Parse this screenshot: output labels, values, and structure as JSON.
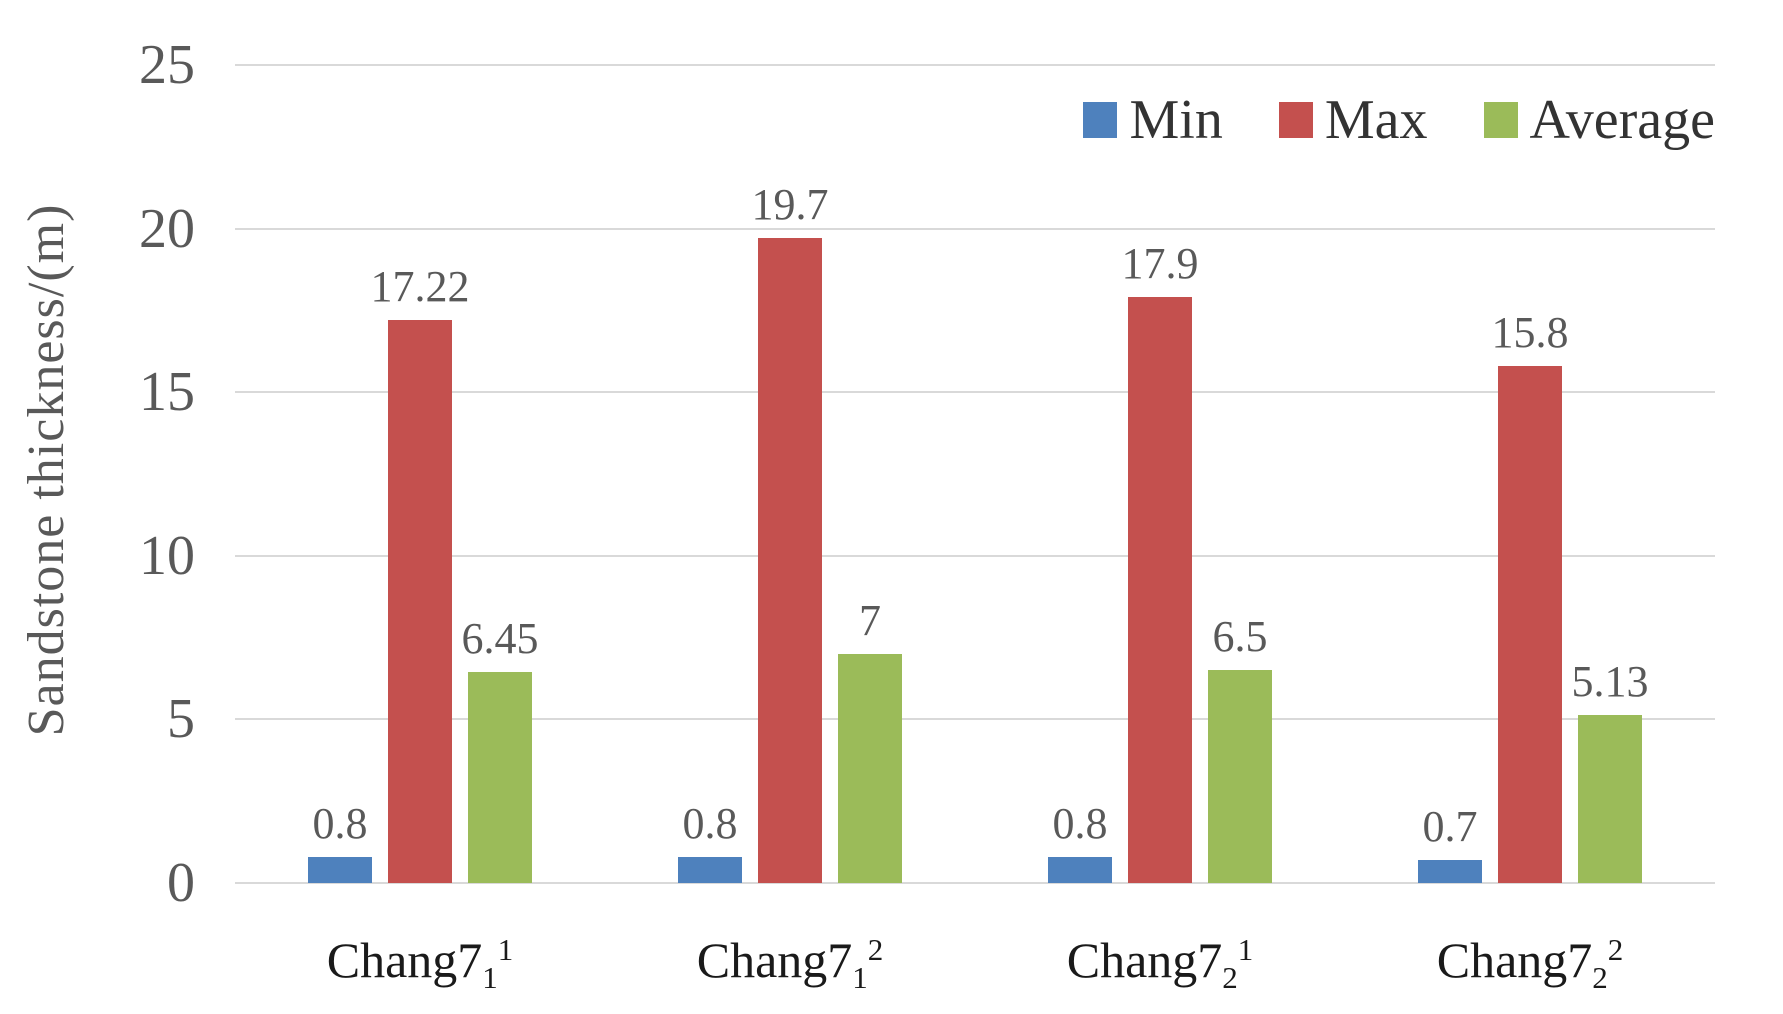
{
  "chart_data": {
    "type": "bar",
    "title": "",
    "xlabel": "",
    "ylabel": "Sandstone thickness/(m)",
    "ylim": [
      0,
      25
    ],
    "yticks": [
      0,
      5,
      10,
      15,
      20,
      25
    ],
    "grid": "horizontal",
    "legend_position": "top-right-inside",
    "categories": [
      {
        "base": "Chang7",
        "sub": "1",
        "sup": "1"
      },
      {
        "base": "Chang7",
        "sub": "1",
        "sup": "2"
      },
      {
        "base": "Chang7",
        "sub": "2",
        "sup": "1"
      },
      {
        "base": "Chang7",
        "sub": "2",
        "sup": "2"
      }
    ],
    "series": [
      {
        "name": "Min",
        "color": "#4E81BD",
        "values": [
          0.8,
          0.8,
          0.8,
          0.7
        ],
        "labels": [
          "0.8",
          "0.8",
          "0.8",
          "0.7"
        ]
      },
      {
        "name": "Max",
        "color": "#C4504E",
        "values": [
          17.22,
          19.7,
          17.9,
          15.8
        ],
        "labels": [
          "17.22",
          "19.7",
          "17.9",
          "15.8"
        ]
      },
      {
        "name": "Average",
        "color": "#9BBB59",
        "values": [
          6.45,
          7,
          6.5,
          5.13
        ],
        "labels": [
          "6.45",
          "7",
          "6.5",
          "5.13"
        ]
      }
    ]
  },
  "styles": {
    "grid_color": "#d9d9d9",
    "tick_text_color": "#595959",
    "value_label_color": "#595959",
    "category_text_color": "#1a1a1a",
    "legend_text_color": "#333333",
    "axis_title_color": "#595959",
    "background": "#ffffff"
  }
}
